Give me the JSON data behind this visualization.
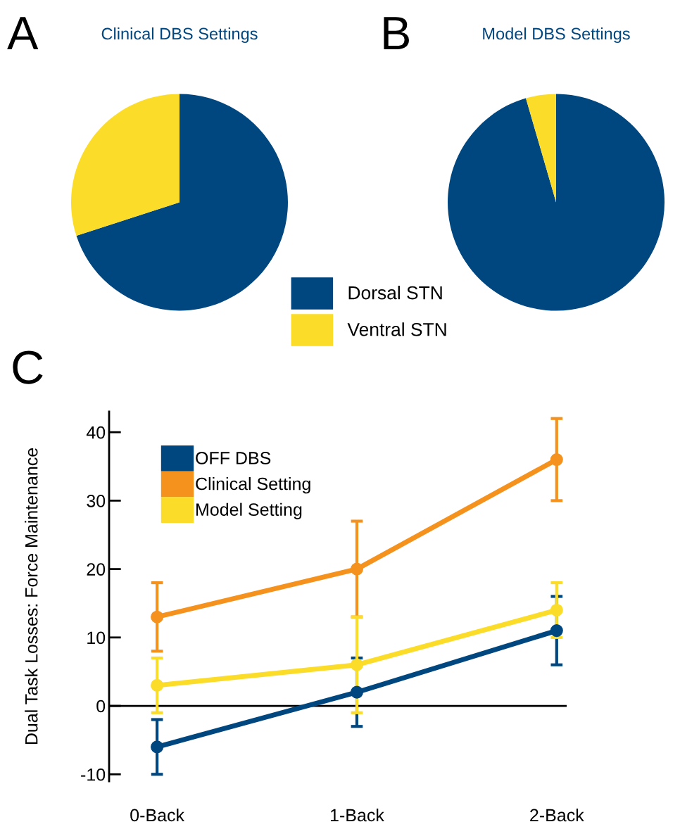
{
  "chart_data": [
    {
      "type": "pie",
      "title": "Clinical DBS Settings",
      "annotations": [
        "A"
      ],
      "categories": [
        "Dorsal STN",
        "Ventral STN"
      ],
      "values": [
        70,
        30
      ],
      "colors": [
        "#00467f",
        "#fbdc29"
      ],
      "legend": "bottom right"
    },
    {
      "type": "pie",
      "title": "Model DBS Settings",
      "annotations": [
        "B"
      ],
      "categories": [
        null,
        null
      ],
      "values": [
        95.5,
        4.5
      ],
      "colors": [
        "#00467f",
        "#fbdc29"
      ]
    },
    {
      "type": "line",
      "annotations": [
        "C"
      ],
      "ylabel": "Dual Task Losses: Force Maintenance",
      "categories": [
        "0-Back",
        "1-Back",
        "2-Back"
      ],
      "ylim": [
        -11,
        43
      ],
      "yticks": [
        -10,
        0,
        10,
        20,
        30,
        40
      ],
      "marker": "circle",
      "legend": "top left",
      "grid": false,
      "ref_lines": [
        {
          "axis": "y",
          "value": 0,
          "color": "#000000"
        }
      ],
      "series": [
        {
          "name": "OFF DBS",
          "color": "#00467f",
          "values": [
            -6,
            2,
            11
          ],
          "errors": [
            4,
            5,
            5
          ]
        },
        {
          "name": "Clinical Setting",
          "color": "#f5921e",
          "values": [
            13,
            20,
            36
          ],
          "errors": [
            5,
            7,
            6
          ]
        },
        {
          "name": "Model Setting",
          "color": "#fbdc29",
          "values": [
            3,
            6,
            14
          ],
          "errors": [
            4,
            7,
            4
          ]
        }
      ]
    }
  ]
}
